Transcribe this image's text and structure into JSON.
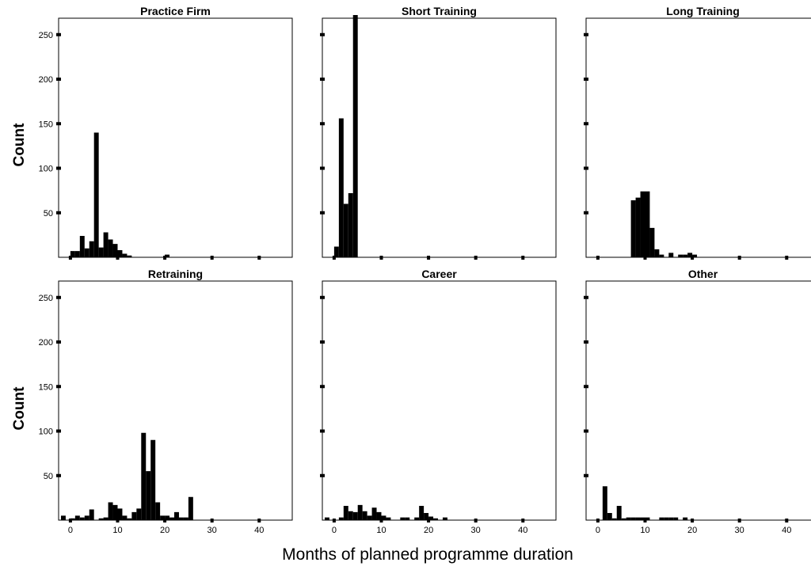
{
  "chart_data": {
    "type": "bar",
    "subtype": "histogram-faceted",
    "xlabel": "Months of planned programme duration",
    "ylabel": "Count",
    "xlim": [
      -2.5,
      47
    ],
    "ylim": [
      0,
      280
    ],
    "xticks": [
      0,
      10,
      20,
      30,
      40
    ],
    "yticks": [
      50,
      100,
      150,
      200,
      250
    ],
    "bin_width": 1,
    "bar_color": "#000000",
    "grid": false,
    "legend": "none",
    "panels": [
      {
        "title": "Practice Firm",
        "bins": [
          [
            0,
            7
          ],
          [
            1,
            7
          ],
          [
            2,
            24
          ],
          [
            3,
            10
          ],
          [
            4,
            18
          ],
          [
            5,
            140
          ],
          [
            6,
            11
          ],
          [
            7,
            28
          ],
          [
            8,
            20
          ],
          [
            9,
            15
          ],
          [
            10,
            8
          ],
          [
            11,
            4
          ],
          [
            12,
            2
          ],
          [
            20,
            3
          ]
        ]
      },
      {
        "title": "Short Training",
        "bins": [
          [
            0,
            12
          ],
          [
            1,
            156
          ],
          [
            2,
            60
          ],
          [
            3,
            72
          ],
          [
            4,
            272
          ]
        ]
      },
      {
        "title": "Long Training",
        "bins": [
          [
            7,
            64
          ],
          [
            8,
            67
          ],
          [
            9,
            74
          ],
          [
            10,
            74
          ],
          [
            11,
            33
          ],
          [
            12,
            9
          ],
          [
            13,
            3
          ],
          [
            15,
            5
          ],
          [
            17,
            3
          ],
          [
            18,
            3
          ],
          [
            19,
            5
          ],
          [
            20,
            3
          ]
        ]
      },
      {
        "title": "Retraining",
        "bins": [
          [
            -2,
            5
          ],
          [
            0,
            2
          ],
          [
            1,
            5
          ],
          [
            2,
            3
          ],
          [
            3,
            5
          ],
          [
            4,
            12
          ],
          [
            6,
            2
          ],
          [
            7,
            3
          ],
          [
            8,
            20
          ],
          [
            9,
            17
          ],
          [
            10,
            13
          ],
          [
            11,
            5
          ],
          [
            12,
            2
          ],
          [
            13,
            9
          ],
          [
            14,
            13
          ],
          [
            15,
            98
          ],
          [
            16,
            55
          ],
          [
            17,
            90
          ],
          [
            18,
            20
          ],
          [
            19,
            5
          ],
          [
            20,
            5
          ],
          [
            21,
            3
          ],
          [
            22,
            9
          ],
          [
            23,
            3
          ],
          [
            24,
            3
          ],
          [
            25,
            26
          ]
        ]
      },
      {
        "title": "Career",
        "bins": [
          [
            -2,
            3
          ],
          [
            1,
            3
          ],
          [
            2,
            16
          ],
          [
            3,
            10
          ],
          [
            4,
            9
          ],
          [
            5,
            17
          ],
          [
            6,
            10
          ],
          [
            7,
            5
          ],
          [
            8,
            14
          ],
          [
            9,
            9
          ],
          [
            10,
            5
          ],
          [
            11,
            3
          ],
          [
            14,
            3
          ],
          [
            15,
            3
          ],
          [
            17,
            3
          ],
          [
            18,
            16
          ],
          [
            19,
            8
          ],
          [
            20,
            4
          ],
          [
            21,
            2
          ],
          [
            23,
            3
          ]
        ]
      },
      {
        "title": "Other",
        "bins": [
          [
            1,
            38
          ],
          [
            2,
            8
          ],
          [
            3,
            2
          ],
          [
            4,
            16
          ],
          [
            5,
            2
          ],
          [
            6,
            3
          ],
          [
            7,
            3
          ],
          [
            8,
            3
          ],
          [
            9,
            3
          ],
          [
            10,
            3
          ],
          [
            13,
            3
          ],
          [
            14,
            3
          ],
          [
            15,
            3
          ],
          [
            16,
            3
          ],
          [
            18,
            3
          ]
        ]
      }
    ]
  }
}
